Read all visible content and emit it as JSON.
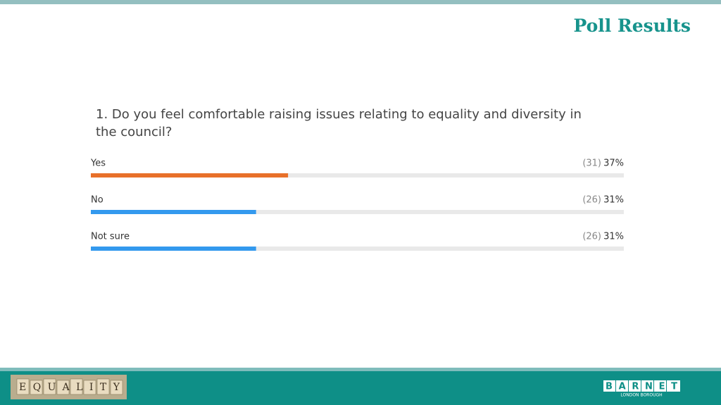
{
  "header": {
    "title": "Poll Results"
  },
  "chart_data": {
    "type": "bar",
    "orientation": "horizontal",
    "title": "1. Do you feel comfortable raising issues relating to equality and diversity in the council?",
    "categories": [
      "Yes",
      "No",
      "Not sure"
    ],
    "values": [
      37,
      31,
      31
    ],
    "value_labels": [
      "37%",
      "31%",
      "31%"
    ],
    "counts": [
      31,
      26,
      26
    ],
    "count_labels": [
      "(31)",
      "(26)",
      "(26)"
    ],
    "colors": [
      "#e8702a",
      "#3399ee",
      "#3399ee"
    ],
    "xlim": [
      0,
      100
    ]
  },
  "footer": {
    "image_text": "EQUALITY",
    "logo": "BARNET",
    "logo_subtitle": "LONDON BOROUGH"
  }
}
